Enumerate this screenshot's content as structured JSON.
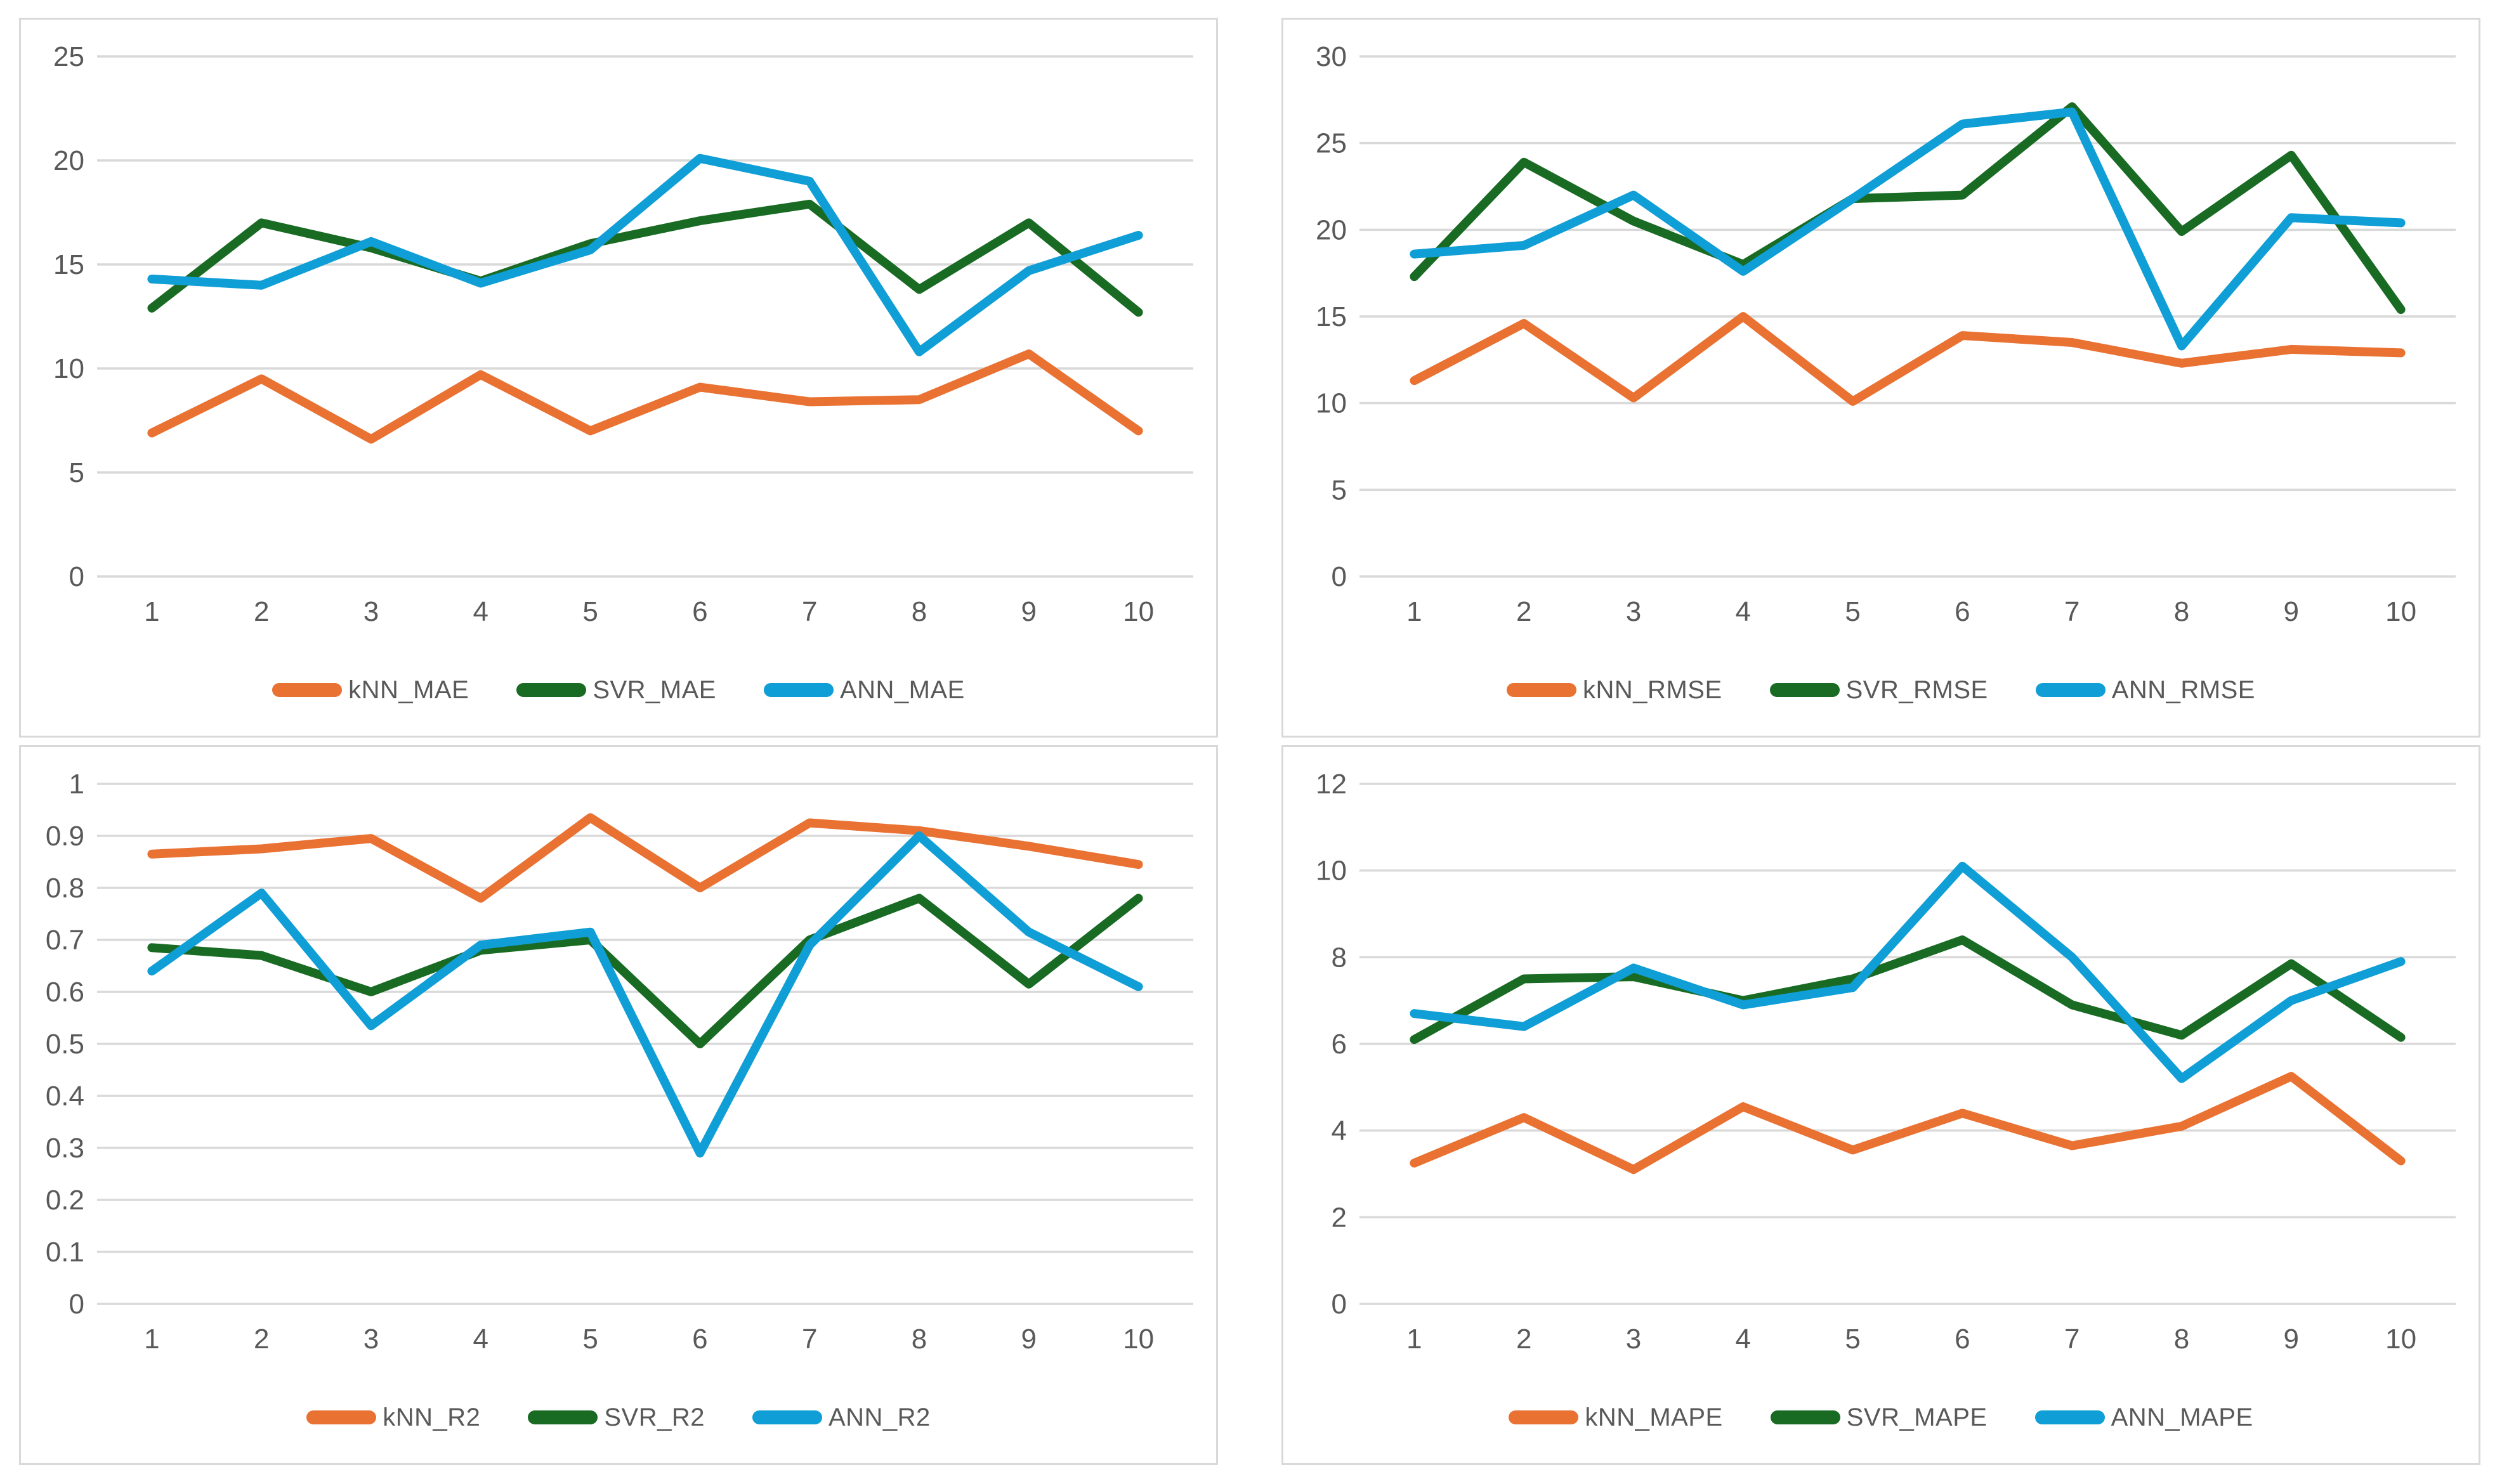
{
  "palette": {
    "knn_orange": "#E97132",
    "svr_green": "#196B24",
    "ann_blue": "#0F9ED5",
    "gridline": "#D9D9D9",
    "axis_text": "#595959",
    "panel_border": "#D9D9D9",
    "background": "#FFFFFF"
  },
  "chart_data": [
    {
      "id": "mae",
      "type": "line",
      "title": "",
      "xlabel": "",
      "ylabel": "",
      "grid": true,
      "legend_position": "bottom",
      "categories": [
        "1",
        "2",
        "3",
        "4",
        "5",
        "6",
        "7",
        "8",
        "9",
        "10"
      ],
      "ylim": [
        0,
        25
      ],
      "yticks": [
        {
          "v": 0,
          "label": "0"
        },
        {
          "v": 5,
          "label": "5"
        },
        {
          "v": 10,
          "label": "10"
        },
        {
          "v": 15,
          "label": "15"
        },
        {
          "v": 20,
          "label": "20"
        },
        {
          "v": 25,
          "label": "25"
        }
      ],
      "series": [
        {
          "name": "kNN_MAE",
          "color": "#E97132",
          "values": [
            6.9,
            9.5,
            6.6,
            9.7,
            7.0,
            9.1,
            8.4,
            8.5,
            10.7,
            7.0
          ]
        },
        {
          "name": "SVR_MAE",
          "color": "#196B24",
          "values": [
            12.9,
            17.0,
            15.8,
            14.2,
            16.0,
            17.1,
            17.9,
            13.8,
            17.0,
            12.7
          ]
        },
        {
          "name": "ANN_MAE",
          "color": "#0F9ED5",
          "values": [
            14.3,
            14.0,
            16.1,
            14.1,
            15.7,
            20.1,
            19.0,
            10.8,
            14.7,
            16.4
          ]
        }
      ]
    },
    {
      "id": "rmse",
      "type": "line",
      "title": "",
      "xlabel": "",
      "ylabel": "",
      "grid": true,
      "legend_position": "bottom",
      "categories": [
        "1",
        "2",
        "3",
        "4",
        "5",
        "6",
        "7",
        "8",
        "9",
        "10"
      ],
      "ylim": [
        0,
        30
      ],
      "yticks": [
        {
          "v": 0,
          "label": "0"
        },
        {
          "v": 5,
          "label": "5"
        },
        {
          "v": 10,
          "label": "10"
        },
        {
          "v": 15,
          "label": "15"
        },
        {
          "v": 20,
          "label": "20"
        },
        {
          "v": 25,
          "label": "25"
        },
        {
          "v": 30,
          "label": "30"
        }
      ],
      "series": [
        {
          "name": "kNN_RMSE",
          "color": "#E97132",
          "values": [
            11.3,
            14.6,
            10.3,
            15.0,
            10.1,
            13.9,
            13.5,
            12.3,
            13.1,
            12.9
          ]
        },
        {
          "name": "SVR_RMSE",
          "color": "#196B24",
          "values": [
            17.3,
            23.9,
            20.5,
            18.0,
            21.8,
            22.0,
            27.1,
            19.9,
            24.3,
            15.4
          ]
        },
        {
          "name": "ANN_RMSE",
          "color": "#0F9ED5",
          "values": [
            18.6,
            19.1,
            22.0,
            17.6,
            21.8,
            26.1,
            26.8,
            13.3,
            20.7,
            20.4
          ]
        }
      ]
    },
    {
      "id": "r2",
      "type": "line",
      "title": "",
      "xlabel": "",
      "ylabel": "",
      "grid": true,
      "legend_position": "bottom",
      "categories": [
        "1",
        "2",
        "3",
        "4",
        "5",
        "6",
        "7",
        "8",
        "9",
        "10"
      ],
      "ylim": [
        0,
        1
      ],
      "yticks": [
        {
          "v": 0,
          "label": "0"
        },
        {
          "v": 0.1,
          "label": "0.1"
        },
        {
          "v": 0.2,
          "label": "0.2"
        },
        {
          "v": 0.3,
          "label": "0.3"
        },
        {
          "v": 0.4,
          "label": "0.4"
        },
        {
          "v": 0.5,
          "label": "0.5"
        },
        {
          "v": 0.6,
          "label": "0.6"
        },
        {
          "v": 0.7,
          "label": "0.7"
        },
        {
          "v": 0.8,
          "label": "0.8"
        },
        {
          "v": 0.9,
          "label": "0.9"
        },
        {
          "v": 1,
          "label": "1"
        }
      ],
      "series": [
        {
          "name": "kNN_R2",
          "color": "#E97132",
          "values": [
            0.865,
            0.875,
            0.895,
            0.78,
            0.935,
            0.8,
            0.925,
            0.91,
            0.88,
            0.845
          ]
        },
        {
          "name": "SVR_R2",
          "color": "#196B24",
          "values": [
            0.685,
            0.67,
            0.6,
            0.68,
            0.7,
            0.5,
            0.7,
            0.78,
            0.615,
            0.78
          ]
        },
        {
          "name": "ANN_R2",
          "color": "#0F9ED5",
          "values": [
            0.64,
            0.79,
            0.535,
            0.69,
            0.715,
            0.29,
            0.69,
            0.9,
            0.715,
            0.61
          ]
        }
      ]
    },
    {
      "id": "mape",
      "type": "line",
      "title": "",
      "xlabel": "",
      "ylabel": "",
      "grid": true,
      "legend_position": "bottom",
      "categories": [
        "1",
        "2",
        "3",
        "4",
        "5",
        "6",
        "7",
        "8",
        "9",
        "10"
      ],
      "ylim": [
        0,
        12
      ],
      "yticks": [
        {
          "v": 0,
          "label": "0"
        },
        {
          "v": 2,
          "label": "2"
        },
        {
          "v": 4,
          "label": "4"
        },
        {
          "v": 6,
          "label": "6"
        },
        {
          "v": 8,
          "label": "8"
        },
        {
          "v": 10,
          "label": "10"
        },
        {
          "v": 12,
          "label": "12"
        }
      ],
      "series": [
        {
          "name": "kNN_MAPE",
          "color": "#E97132",
          "values": [
            3.25,
            4.3,
            3.1,
            4.55,
            3.55,
            4.4,
            3.65,
            4.1,
            5.25,
            3.3
          ]
        },
        {
          "name": "SVR_MAPE",
          "color": "#196B24",
          "values": [
            6.1,
            7.5,
            7.55,
            7.0,
            7.5,
            8.4,
            6.9,
            6.2,
            7.85,
            6.15
          ]
        },
        {
          "name": "ANN_MAPE",
          "color": "#0F9ED5",
          "values": [
            6.7,
            6.4,
            7.75,
            6.9,
            7.3,
            10.1,
            8.0,
            5.2,
            7.0,
            7.9
          ]
        }
      ]
    }
  ]
}
